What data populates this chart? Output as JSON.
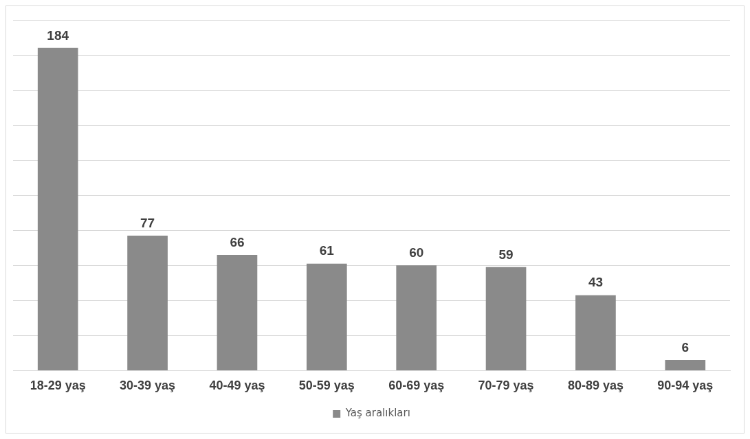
{
  "chart_data": {
    "type": "bar",
    "categories": [
      "18-29 yaş",
      "30-39 yaş",
      "40-49 yaş",
      "50-59 yaş",
      "60-69 yaş",
      "70-79 yaş",
      "80-89 yaş",
      "90-94 yaş"
    ],
    "series": [
      {
        "name": "Yaş aralıkları",
        "color": "#8a8a8a",
        "values": [
          184,
          77,
          66,
          61,
          60,
          59,
          43,
          6
        ]
      }
    ],
    "ylim": [
      0,
      200
    ],
    "yticks": [
      {
        "value": 0,
        "label": null
      },
      {
        "value": 20,
        "label": null
      },
      {
        "value": 40,
        "label": null
      },
      {
        "value": 60,
        "label": null
      },
      {
        "value": 80,
        "label": null
      },
      {
        "value": 100,
        "label": null
      },
      {
        "value": 120,
        "label": null
      },
      {
        "value": 140,
        "label": null
      },
      {
        "value": 160,
        "label": null
      },
      {
        "value": 180,
        "label": null
      },
      {
        "value": 200,
        "label": null
      }
    ],
    "grid": "y",
    "tick_labels": "x",
    "data_labels": true,
    "legend": "bottom"
  }
}
